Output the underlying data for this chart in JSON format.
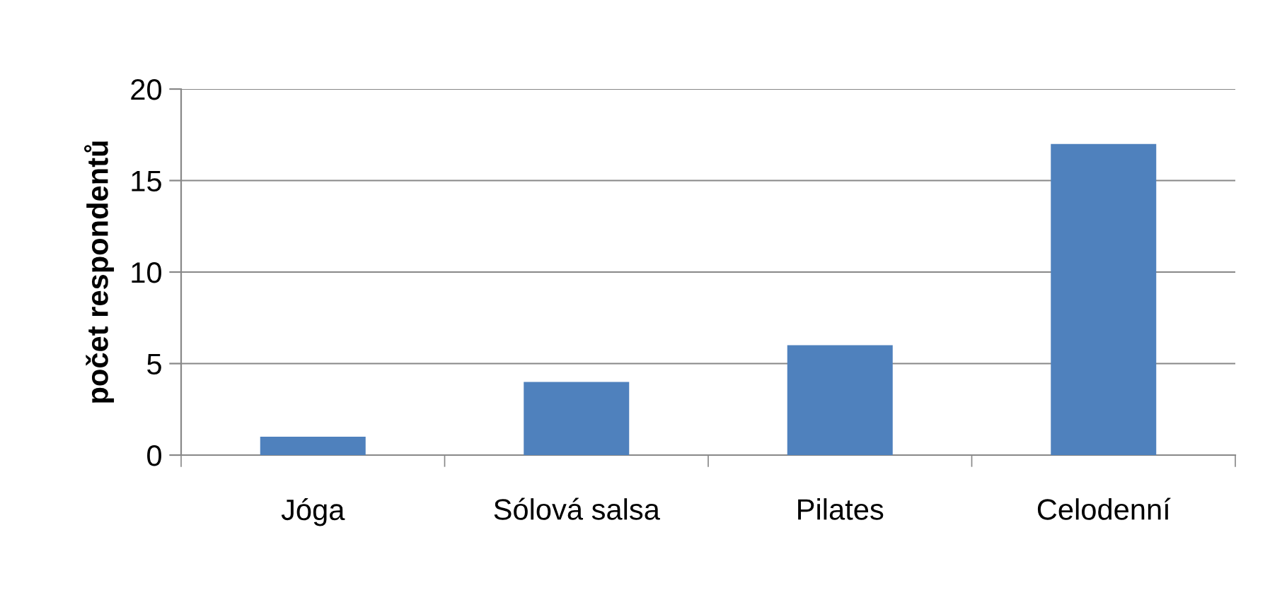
{
  "chart_data": {
    "type": "bar",
    "ylabel": "počet respondentů",
    "categories": [
      "Jóga",
      "Sólová salsa",
      "Pilates",
      "Celodenní"
    ],
    "values": [
      1,
      4,
      6,
      17
    ],
    "color": "#4f81bd",
    "ylim": [
      0,
      20
    ],
    "yticks": [
      0,
      5,
      10,
      15,
      20
    ],
    "grid": "y"
  }
}
